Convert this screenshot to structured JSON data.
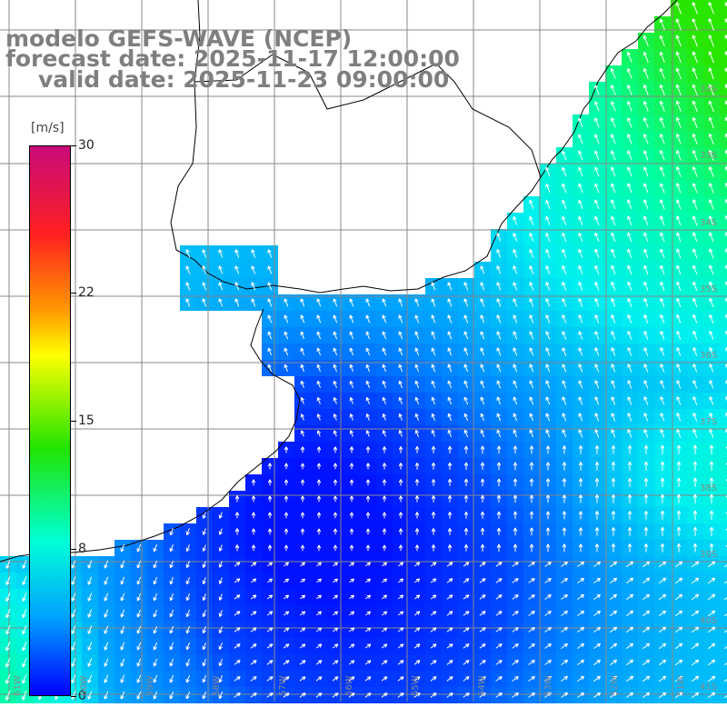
{
  "title": {
    "line1": "modelo GEFS-WAVE (NCEP)",
    "line2": "forecast date: 2025-11-17 12:00:00",
    "line3": "valid date: 2025-11-23 09:00:00"
  },
  "colorbar": {
    "unit": "[m/s]",
    "ticks": [
      {
        "label": "30",
        "value": 30
      },
      {
        "label": "22",
        "value": 22
      },
      {
        "label": "15",
        "value": 15
      },
      {
        "label": "8",
        "value": 8
      },
      {
        "label": "0",
        "value": 0
      }
    ],
    "range": [
      0,
      30
    ]
  },
  "map": {
    "lat_labels": [
      "32S",
      "33S",
      "34S",
      "35S",
      "36S",
      "37S",
      "38S",
      "39S",
      "40S",
      "41S"
    ],
    "lon_labels": [
      "61W",
      "60W",
      "59W",
      "58W",
      "57W",
      "56W",
      "55W",
      "54W",
      "53W",
      "52W",
      "51W"
    ],
    "colors": {
      "land": "#ffffff",
      "grid": "#888888",
      "coast": "#000000",
      "arrows": "#ffffff"
    }
  }
}
